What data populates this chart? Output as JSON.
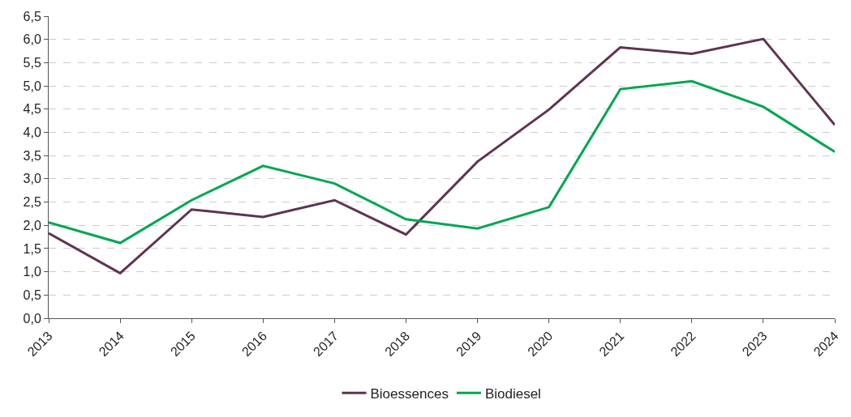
{
  "chart_data": {
    "type": "line",
    "categories": [
      "2013",
      "2014",
      "2015",
      "2016",
      "2017",
      "2018",
      "2019",
      "2020",
      "2021",
      "2022",
      "2023",
      "2024"
    ],
    "series": [
      {
        "name": "Bioessences",
        "color": "#5e3450",
        "values": [
          1.83,
          0.97,
          2.34,
          2.18,
          2.54,
          1.8,
          3.37,
          4.49,
          5.83,
          5.69,
          6.01,
          4.16
        ]
      },
      {
        "name": "Biodiesel",
        "color": "#00a651",
        "values": [
          2.06,
          1.62,
          2.54,
          3.28,
          2.9,
          2.13,
          1.93,
          2.39,
          4.93,
          5.1,
          4.55,
          3.58
        ]
      }
    ],
    "ylim": [
      0,
      6.5
    ],
    "yticks": [
      {
        "value": 0,
        "label": "0,0"
      },
      {
        "value": 0.5,
        "label": "0,5"
      },
      {
        "value": 1,
        "label": "1,0"
      },
      {
        "value": 1.5,
        "label": "1,5"
      },
      {
        "value": 2,
        "label": "2,0"
      },
      {
        "value": 2.5,
        "label": "2,5"
      },
      {
        "value": 3,
        "label": "3,0"
      },
      {
        "value": 3.5,
        "label": "3,5"
      },
      {
        "value": 4,
        "label": "4,0"
      },
      {
        "value": 4.5,
        "label": "4,5"
      },
      {
        "value": 5,
        "label": "5,0"
      },
      {
        "value": 5.5,
        "label": "5,5"
      },
      {
        "value": 6,
        "label": "6,0"
      },
      {
        "value": 6.5,
        "label": "6,5"
      }
    ],
    "grid": "y",
    "legend": "bottom",
    "marker": "none",
    "line_style": "solid"
  }
}
